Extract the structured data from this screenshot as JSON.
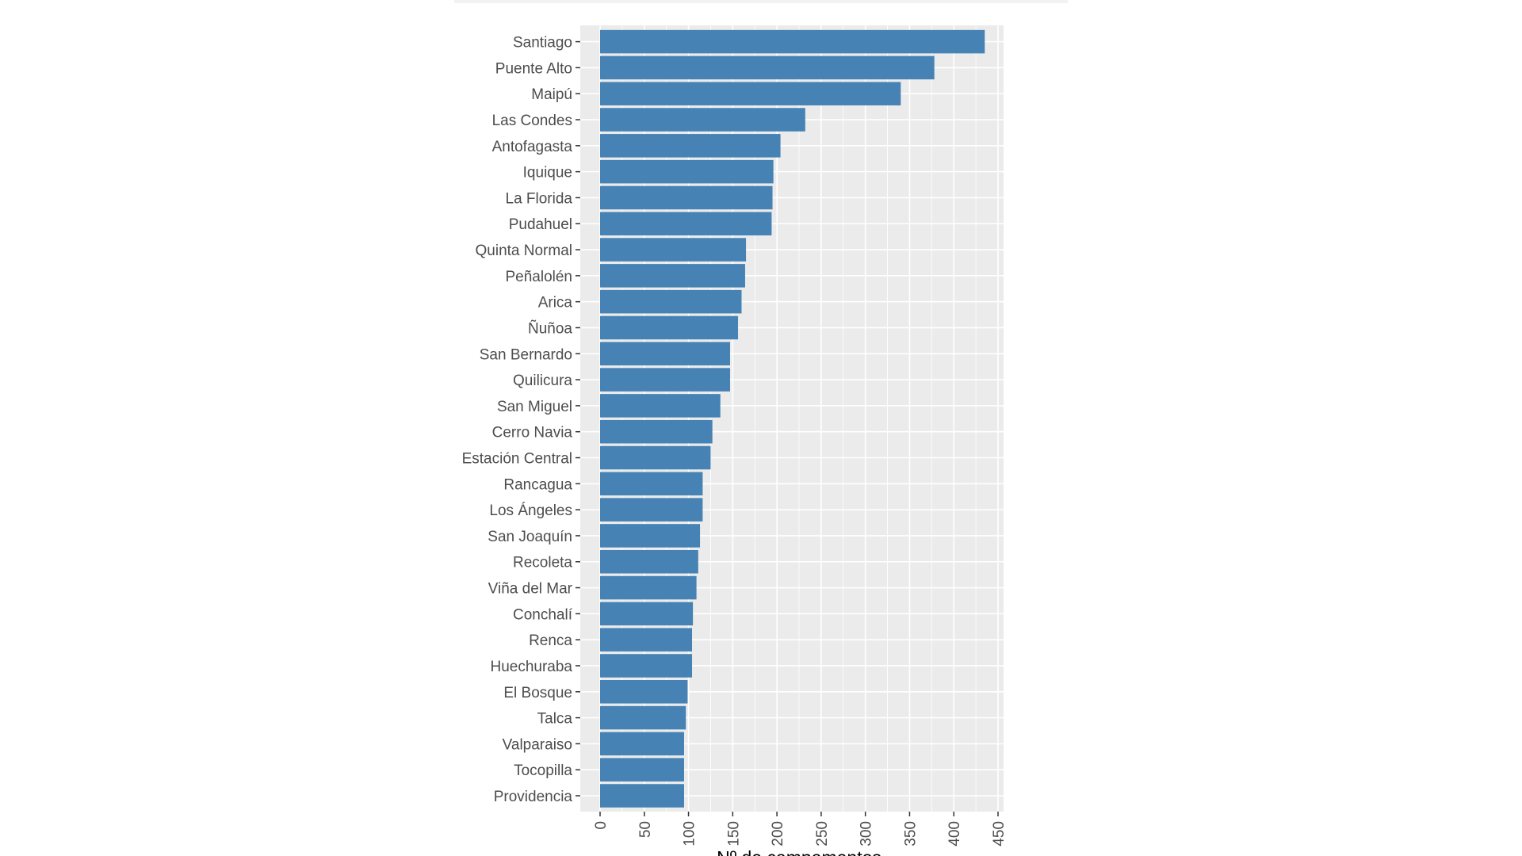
{
  "chart_data": {
    "type": "bar",
    "orientation": "horizontal",
    "title": "",
    "xlabel": "Nº de campamentos",
    "ylabel": "",
    "xlim": [
      0,
      460
    ],
    "xticks": [
      0,
      50,
      100,
      150,
      200,
      250,
      300,
      350,
      400,
      450
    ],
    "grid": true,
    "bar_color": "#4682B4",
    "panel_color": "#EBEBEB",
    "categories": [
      "Santiago",
      "Puente Alto",
      "Maipú",
      "Las Condes",
      "Antofagasta",
      "Iquique",
      "La Florida",
      "Pudahuel",
      "Quinta Normal",
      "Peñalolén",
      "Arica",
      "Ñuñoa",
      "San Bernardo",
      "Quilicura",
      "San Miguel",
      "Cerro Navia",
      "Estación Central",
      "Rancagua",
      "Los Ángeles",
      "San Joaquín",
      "Recoleta",
      "Viña del Mar",
      "Conchalí",
      "Renca",
      "Huechuraba",
      "El Bosque",
      "Talca",
      "Valparaiso",
      "Tocopilla",
      "Providencia"
    ],
    "values": [
      435,
      378,
      340,
      232,
      204,
      196,
      195,
      194,
      165,
      164,
      160,
      156,
      147,
      147,
      136,
      127,
      125,
      116,
      116,
      113,
      111,
      109,
      105,
      104,
      104,
      99,
      97,
      95,
      95,
      95
    ]
  }
}
